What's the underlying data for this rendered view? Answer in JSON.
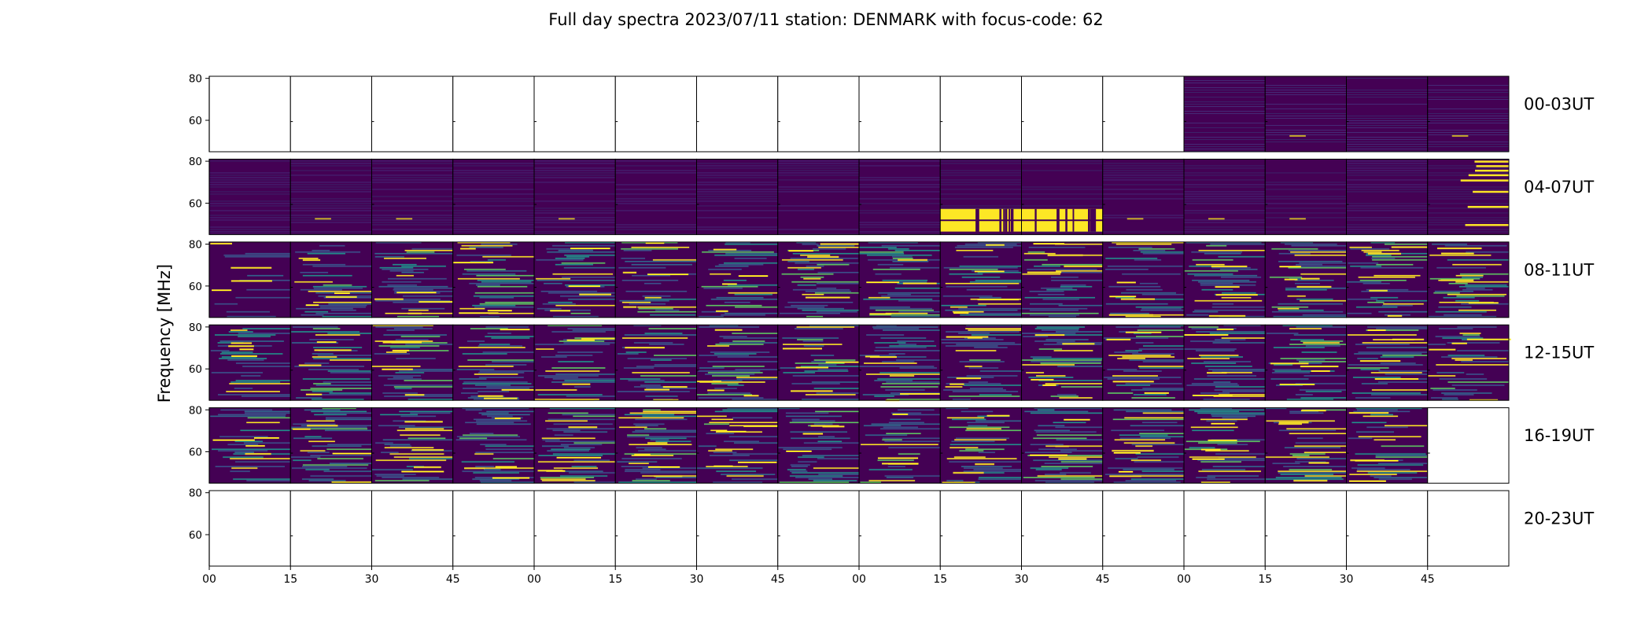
{
  "chart_data": {
    "type": "heatmap",
    "title": "Full day spectra 2023/07/11 station: DENMARK with focus-code: 62",
    "ylabel": "Frequency [MHz]",
    "ylim": [
      45,
      81
    ],
    "yticks": [
      "80",
      "60"
    ],
    "xticks": [
      "00",
      "15",
      "30",
      "45",
      "00",
      "15",
      "30",
      "45",
      "00",
      "15",
      "30",
      "45",
      "00",
      "15",
      "30",
      "45"
    ],
    "colormap": "viridis",
    "colors": {
      "low": "#440154",
      "mid": "#21918c",
      "high": "#fde725",
      "empty": "#ffffff"
    },
    "rows": [
      {
        "label": "00-03UT",
        "panels": [
          "empty",
          "empty",
          "empty",
          "empty",
          "empty",
          "empty",
          "empty",
          "empty",
          "empty",
          "empty",
          "empty",
          "empty",
          "quiet",
          "quiet",
          "quiet",
          "quiet"
        ]
      },
      {
        "label": "04-07UT",
        "panels": [
          "quiet",
          "quiet",
          "quiet",
          "quiet",
          "quiet",
          "quiet",
          "quiet",
          "quiet",
          "quiet",
          "burst",
          "burst",
          "quiet",
          "quiet",
          "quiet",
          "quiet",
          "rfi"
        ]
      },
      {
        "label": "08-11UT",
        "panels": [
          "sparse",
          "noisy",
          "noisy",
          "noisy",
          "noisy",
          "noisy",
          "noisy",
          "noisy",
          "noisy",
          "noisy",
          "noisy",
          "noisy",
          "noisy",
          "noisy",
          "noisy",
          "noisy"
        ]
      },
      {
        "label": "12-15UT",
        "panels": [
          "noisy",
          "noisy",
          "noisy",
          "noisy",
          "noisy",
          "noisy",
          "noisy",
          "noisy",
          "noisy",
          "noisy",
          "noisy",
          "noisy",
          "noisy",
          "noisy",
          "noisy",
          "noisy"
        ]
      },
      {
        "label": "16-19UT",
        "panels": [
          "noisy",
          "noisy",
          "noisy",
          "noisy",
          "noisy",
          "noisy",
          "noisy",
          "noisy",
          "noisy",
          "noisy",
          "noisy",
          "noisy",
          "noisy",
          "noisy",
          "noisy",
          "empty"
        ]
      },
      {
        "label": "20-23UT",
        "panels": [
          "empty",
          "empty",
          "empty",
          "empty",
          "empty",
          "empty",
          "empty",
          "empty",
          "empty",
          "empty",
          "empty",
          "empty",
          "empty",
          "empty",
          "empty",
          "empty"
        ]
      }
    ]
  }
}
